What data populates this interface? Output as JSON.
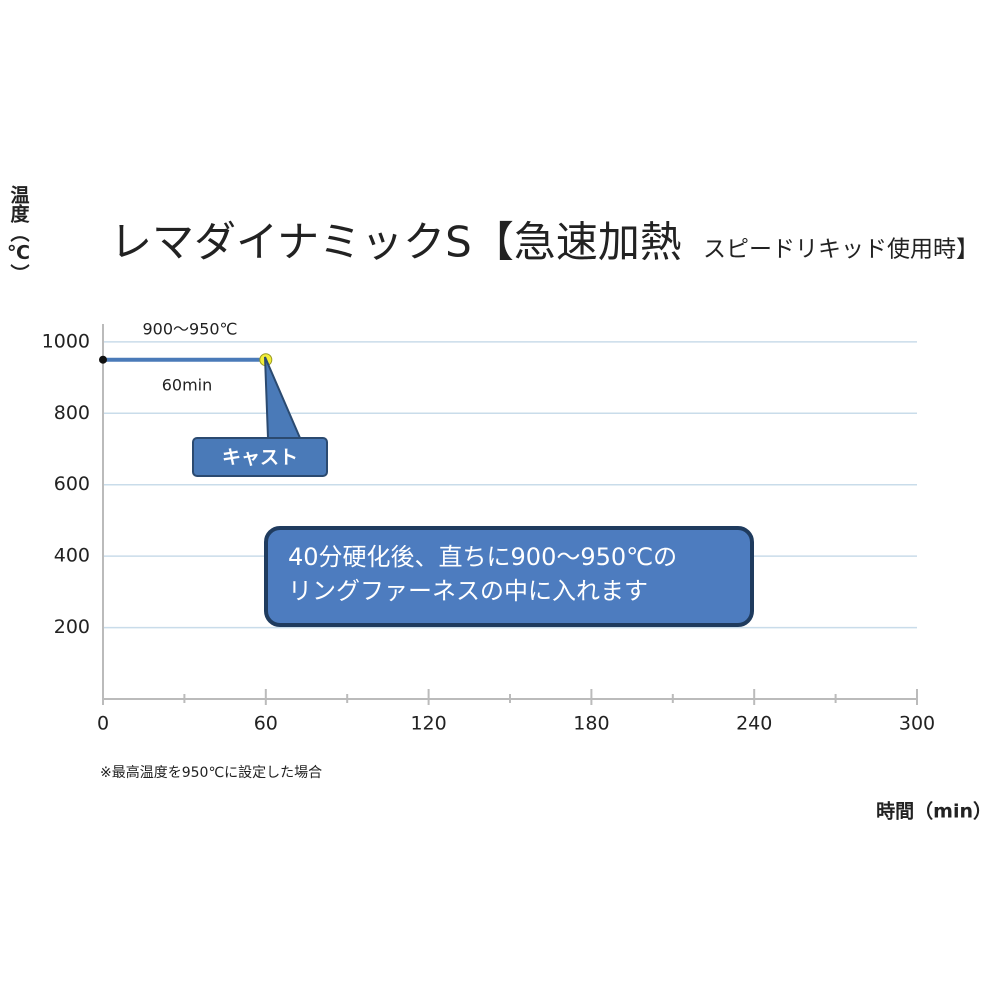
{
  "chart_data": {
    "type": "line",
    "title": "レマダイナミックS【急速加熱",
    "subtitle": "スピードリキッド使用時】",
    "ylabel": "温度（℃）",
    "xlabel": "時間（min）",
    "x": [
      0,
      60
    ],
    "series": [
      {
        "name": "温度",
        "color": "#4a7ab8",
        "values": [
          950,
          950
        ],
        "marker_colors": [
          "#111111",
          "#f2ee3a"
        ]
      }
    ],
    "xlim": [
      0,
      300
    ],
    "xticks": [
      0,
      60,
      120,
      180,
      240,
      300
    ],
    "xminorticks": [
      30,
      90,
      150,
      210,
      270
    ],
    "ylim": [
      0,
      1050
    ],
    "yticks": [
      200,
      400,
      600,
      800,
      1000
    ],
    "grid": true,
    "range_label": "900～950℃",
    "duration_label": "60min",
    "cast_label": "キャスト",
    "note_lines": [
      "40分硬化後、直ちに900～950℃の",
      "リングファーネスの中に入れます"
    ],
    "footnote": "※最高温度を950℃に設定した場合"
  }
}
